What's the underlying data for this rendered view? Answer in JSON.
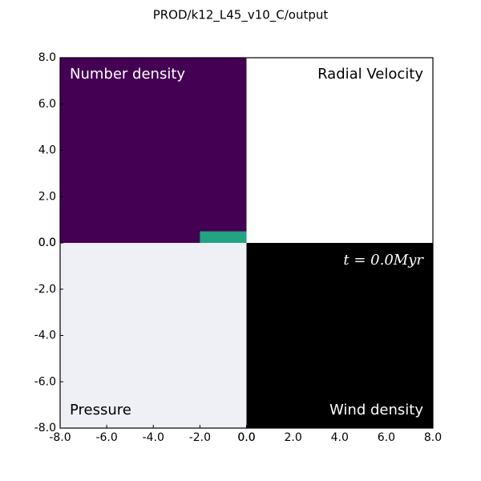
{
  "chart_data": {
    "type": "quad-image",
    "title": "PROD/k12_L45_v10_C/output",
    "annotation": "t = 0.0Myr",
    "panels": [
      {
        "name": "Number density",
        "color": "#440154",
        "label_color": "#ffffff"
      },
      {
        "name": "Radial Velocity",
        "color": "#ffffff",
        "label_color": "#000000"
      },
      {
        "name": "Pressure",
        "color": "#eff0f5",
        "label_color": "#000000"
      },
      {
        "name": "Wind density",
        "color": "#000000",
        "label_color": "#ffffff"
      }
    ],
    "feature": {
      "x": [
        -2,
        0
      ],
      "y": [
        0,
        0.5
      ],
      "color": "#21a384"
    },
    "xaxes": [
      {
        "xlim": [
          -8,
          0
        ],
        "xticks": [
          {
            "value": -8,
            "label": "-8.0"
          },
          {
            "value": -6,
            "label": "-6.0"
          },
          {
            "value": -4,
            "label": "-4.0"
          },
          {
            "value": -2,
            "label": "-2.0"
          },
          {
            "value": 0,
            "label": "0.0"
          }
        ]
      },
      {
        "xlim": [
          0,
          8
        ],
        "xticks": [
          {
            "value": 0,
            "label": "0.0"
          },
          {
            "value": 2,
            "label": "2.0"
          },
          {
            "value": 4,
            "label": "4.0"
          },
          {
            "value": 6,
            "label": "6.0"
          },
          {
            "value": 8,
            "label": "8.0"
          }
        ]
      }
    ],
    "yaxes": [
      {
        "ylim": [
          0,
          8
        ],
        "yticks": [
          {
            "value": 0,
            "label": "0.0"
          },
          {
            "value": 2,
            "label": "2.0"
          },
          {
            "value": 4,
            "label": "4.0"
          },
          {
            "value": 6,
            "label": "6.0"
          },
          {
            "value": 8,
            "label": "8.0"
          }
        ]
      },
      {
        "ylim": [
          -8,
          0
        ],
        "yticks": [
          {
            "value": -8,
            "label": "-8.0"
          },
          {
            "value": -6,
            "label": "-6.0"
          },
          {
            "value": -4,
            "label": "-4.0"
          },
          {
            "value": -2,
            "label": "-2.0"
          },
          {
            "value": 0,
            "label": "0.0"
          }
        ]
      }
    ]
  }
}
